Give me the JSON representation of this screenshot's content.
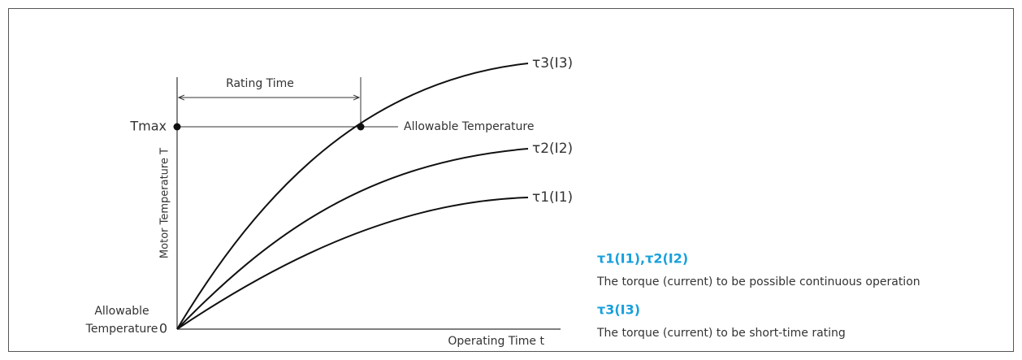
{
  "axes": {
    "y_label": "Motor Temperature T",
    "x_label": "Operating Time t",
    "origin_label": [
      "Allowable",
      "Temperature"
    ],
    "origin_value": "0",
    "tmax": "Tmax"
  },
  "annotations": {
    "rating_time": "Rating Time",
    "allowable_temperature": "Allowable Temperature"
  },
  "curves": [
    {
      "label": "τ3(I3)"
    },
    {
      "label": "τ2(I2)"
    },
    {
      "label": "τ1(I1)"
    }
  ],
  "notes": [
    {
      "title": "τ1(I1),τ2(I2)",
      "text": "The torque (current) to be possible continuous operation"
    },
    {
      "title": "τ3(I3)",
      "text": "The torque (current) to be short-time rating"
    }
  ]
}
